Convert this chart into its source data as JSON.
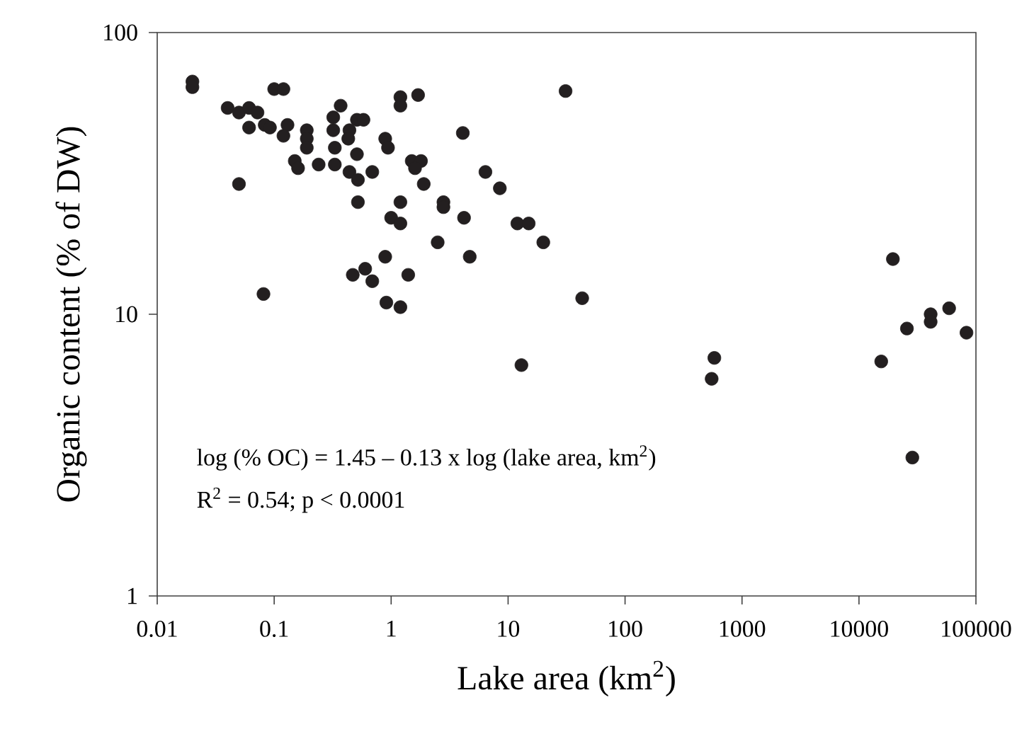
{
  "chart_data": {
    "type": "scatter",
    "xlabel": "Lake area (km$^{2}$)",
    "ylabel": "Organic content (% of DW)",
    "annotations": [
      "log (% OC)  =  1.45 – 0.13 x log (lake area, km$^{2}$)",
      "R$^{2}$ = 0.54; p <  0.0001"
    ],
    "log": "xy",
    "marker": "circle",
    "xlim": [
      0.01,
      100000
    ],
    "ylim": [
      1,
      100
    ],
    "xticks": [
      0.01,
      0.1,
      1,
      10,
      100,
      1000,
      10000,
      100000
    ],
    "yticks": [
      1,
      10,
      100
    ],
    "series": [
      {
        "color": "#231f20",
        "x": [
          0.02,
          0.02,
          0.1,
          0.12,
          0.04,
          0.05,
          0.061,
          0.072,
          0.061,
          0.083,
          0.092,
          0.13,
          0.12,
          0.19,
          0.19,
          0.19,
          0.15,
          0.16,
          0.24,
          0.33,
          0.33,
          0.37,
          0.32,
          0.32,
          0.44,
          0.43,
          0.51,
          0.58,
          0.51,
          0.44,
          0.52,
          0.69,
          0.52,
          0.89,
          0.94,
          1.2,
          1.2,
          1.7,
          1.5,
          1.8,
          1.6,
          1.9,
          1.2,
          1.0,
          1.2,
          2.8,
          2.8,
          2.5,
          0.05,
          0.89,
          0.6,
          0.47,
          0.69,
          1.4,
          0.081,
          0.91,
          1.2,
          31,
          4.1,
          6.4,
          8.5,
          4.2,
          4.7,
          12,
          15,
          20,
          43,
          13,
          580,
          550,
          19500,
          25700,
          41000,
          41000,
          59000,
          83000,
          15500,
          28600
        ],
        "values": [
          67,
          64,
          63,
          63,
          54,
          52,
          54,
          52,
          46,
          47,
          46,
          47,
          43,
          45,
          42,
          39,
          35,
          33,
          34,
          34,
          39,
          55,
          50,
          45,
          45,
          42,
          49,
          49,
          37,
          32,
          30,
          32,
          25,
          42,
          39,
          59,
          55,
          60,
          35,
          35,
          33,
          29,
          25,
          22,
          21,
          25,
          24,
          18,
          29,
          16,
          14.5,
          13.8,
          13.1,
          13.8,
          11.8,
          11,
          10.6,
          62,
          44,
          32,
          28,
          22,
          16,
          21,
          21,
          18,
          11.4,
          6.6,
          7,
          5.9,
          15.7,
          8.9,
          10,
          9.4,
          10.5,
          8.6,
          6.8,
          3.1
        ]
      }
    ]
  }
}
